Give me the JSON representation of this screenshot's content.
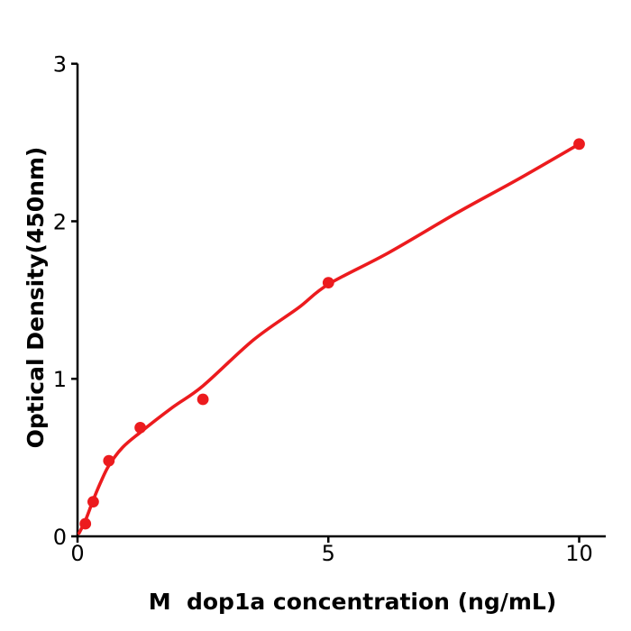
{
  "chart_data": {
    "type": "scatter",
    "subtype": "standard-curve-with-fit",
    "title": "",
    "xlabel": "M  dop1a concentration (ng/mL)",
    "ylabel": "Optical Density(450nm)",
    "x_ticks": [
      0,
      5,
      10
    ],
    "y_ticks": [
      0,
      1,
      2,
      3
    ],
    "xlim": [
      0,
      10.55
    ],
    "ylim": [
      0,
      3
    ],
    "grid": false,
    "legend": "none",
    "points": {
      "x": [
        0.156,
        0.3125,
        0.625,
        1.25,
        2.5,
        5,
        10
      ],
      "y": [
        0.08,
        0.22,
        0.48,
        0.69,
        0.87,
        1.61,
        2.49
      ]
    },
    "fit_curve": [
      [
        0.03,
        0.02
      ],
      [
        0.156,
        0.1
      ],
      [
        0.3,
        0.22
      ],
      [
        0.45,
        0.335
      ],
      [
        0.625,
        0.45
      ],
      [
        0.9,
        0.565
      ],
      [
        1.25,
        0.66
      ],
      [
        1.9,
        0.82
      ],
      [
        2.5,
        0.955
      ],
      [
        3.5,
        1.245
      ],
      [
        4.4,
        1.45
      ],
      [
        5.0,
        1.6
      ],
      [
        6.2,
        1.8
      ],
      [
        7.6,
        2.06
      ],
      [
        8.8,
        2.27
      ],
      [
        10.0,
        2.49
      ]
    ],
    "point_color": "#ec1b1e",
    "curve_color": "#ec1b1e",
    "axis_color": "#000000",
    "background_color": "#ffffff"
  }
}
